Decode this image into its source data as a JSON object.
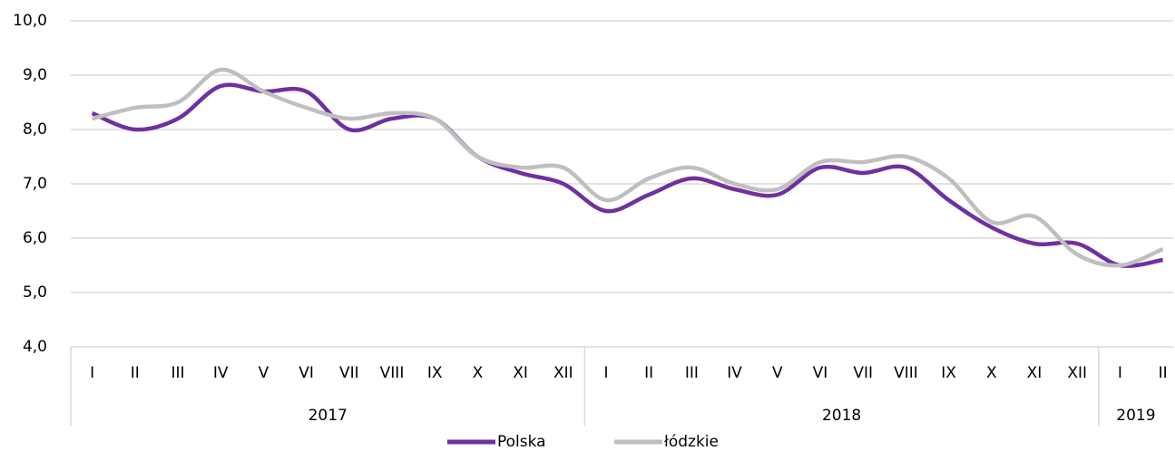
{
  "chart_data": {
    "type": "line",
    "categories": [
      "I",
      "II",
      "III",
      "IV",
      "V",
      "VI",
      "VII",
      "VIII",
      "IX",
      "X",
      "XI",
      "XII",
      "I",
      "II",
      "III",
      "IV",
      "V",
      "VI",
      "VII",
      "VIII",
      "IX",
      "X",
      "XI",
      "XII",
      "I",
      "II"
    ],
    "year_groups": [
      {
        "name": "2017",
        "span": 12
      },
      {
        "name": "2018",
        "span": 12
      },
      {
        "name": "2019",
        "span": 2
      }
    ],
    "series": [
      {
        "name": "Polska",
        "color": "#7030a0",
        "values": [
          8.3,
          8.0,
          8.2,
          8.8,
          8.7,
          8.7,
          8.0,
          8.2,
          8.2,
          7.5,
          7.2,
          7.0,
          6.5,
          6.8,
          7.1,
          6.9,
          6.8,
          7.3,
          7.2,
          7.3,
          6.7,
          6.2,
          5.9,
          5.9,
          5.5,
          5.6
        ]
      },
      {
        "name": "łódzkie",
        "color": "#bfbfbf",
        "values": [
          8.2,
          8.4,
          8.5,
          9.1,
          8.7,
          8.4,
          8.2,
          8.3,
          8.2,
          7.5,
          7.3,
          7.3,
          6.7,
          7.1,
          7.3,
          7.0,
          6.9,
          7.4,
          7.4,
          7.5,
          7.1,
          6.3,
          6.4,
          5.7,
          5.5,
          5.8
        ]
      }
    ],
    "ylim": [
      4,
      10
    ],
    "yticks": [
      {
        "value": 4,
        "label": "4,0"
      },
      {
        "value": 5,
        "label": "5,0"
      },
      {
        "value": 6,
        "label": "6,0"
      },
      {
        "value": 7,
        "label": "7,0"
      },
      {
        "value": 8,
        "label": "8,0"
      },
      {
        "value": 9,
        "label": "9,0"
      },
      {
        "value": 10,
        "label": "10,0"
      }
    ],
    "grid": true,
    "legend": "bottom"
  }
}
